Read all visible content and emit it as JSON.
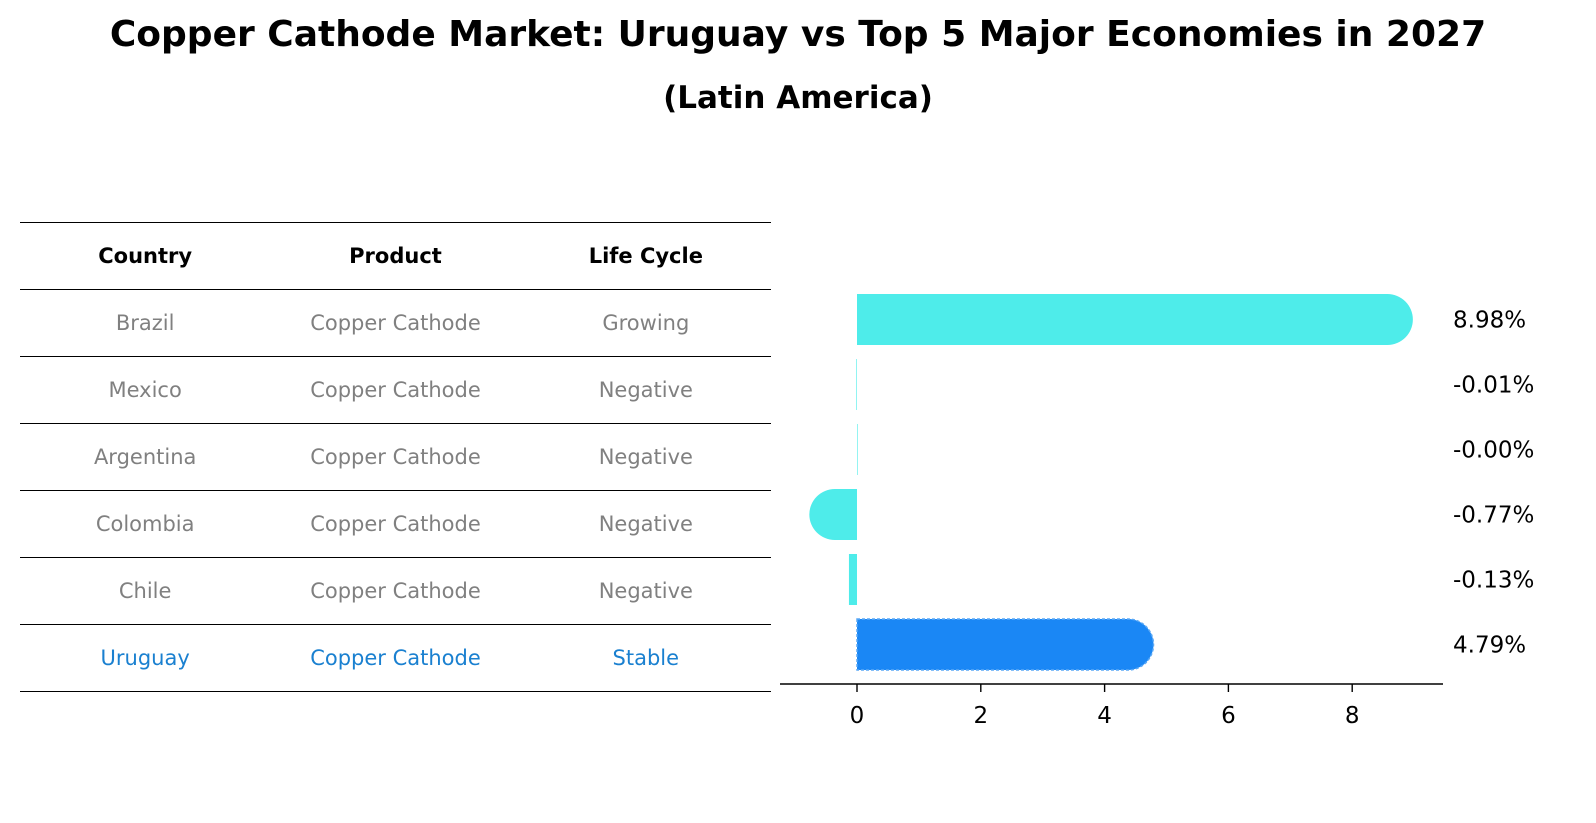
{
  "title": "Copper Cathode Market: Uruguay vs Top 5 Major Economies in 2027",
  "subtitle": "(Latin America)",
  "table": {
    "headers": [
      "Country",
      "Product",
      "Life Cycle"
    ],
    "rows": [
      {
        "country": "Brazil",
        "product": "Copper Cathode",
        "life_cycle": "Growing",
        "highlight": false
      },
      {
        "country": "Mexico",
        "product": "Copper Cathode",
        "life_cycle": "Negative",
        "highlight": false
      },
      {
        "country": "Argentina",
        "product": "Copper Cathode",
        "life_cycle": "Negative",
        "highlight": false
      },
      {
        "country": "Colombia",
        "product": "Copper Cathode",
        "life_cycle": "Negative",
        "highlight": false
      },
      {
        "country": "Chile",
        "product": "Copper Cathode",
        "life_cycle": "Negative",
        "highlight": false
      },
      {
        "country": "Uruguay",
        "product": "Copper Cathode",
        "life_cycle": "Stable",
        "highlight": true
      }
    ]
  },
  "colors": {
    "bar_default": "#4EECEA",
    "bar_highlight": "#1A87F5",
    "text_muted": "#808080",
    "text_highlight": "#1A80D0"
  },
  "chart_data": {
    "type": "bar",
    "orientation": "horizontal",
    "categories": [
      "Brazil",
      "Mexico",
      "Argentina",
      "Colombia",
      "Chile",
      "Uruguay"
    ],
    "values": [
      8.98,
      -0.01,
      -0.0,
      -0.77,
      -0.13,
      4.79
    ],
    "data_labels": [
      "8.98%",
      "-0.01%",
      "-0.00%",
      "-0.77%",
      "-0.13%",
      "4.79%"
    ],
    "highlight_category": "Uruguay",
    "xlim": [
      -1.3,
      9.5
    ],
    "xticks": [
      0,
      2,
      4,
      6,
      8
    ],
    "grid": false
  }
}
